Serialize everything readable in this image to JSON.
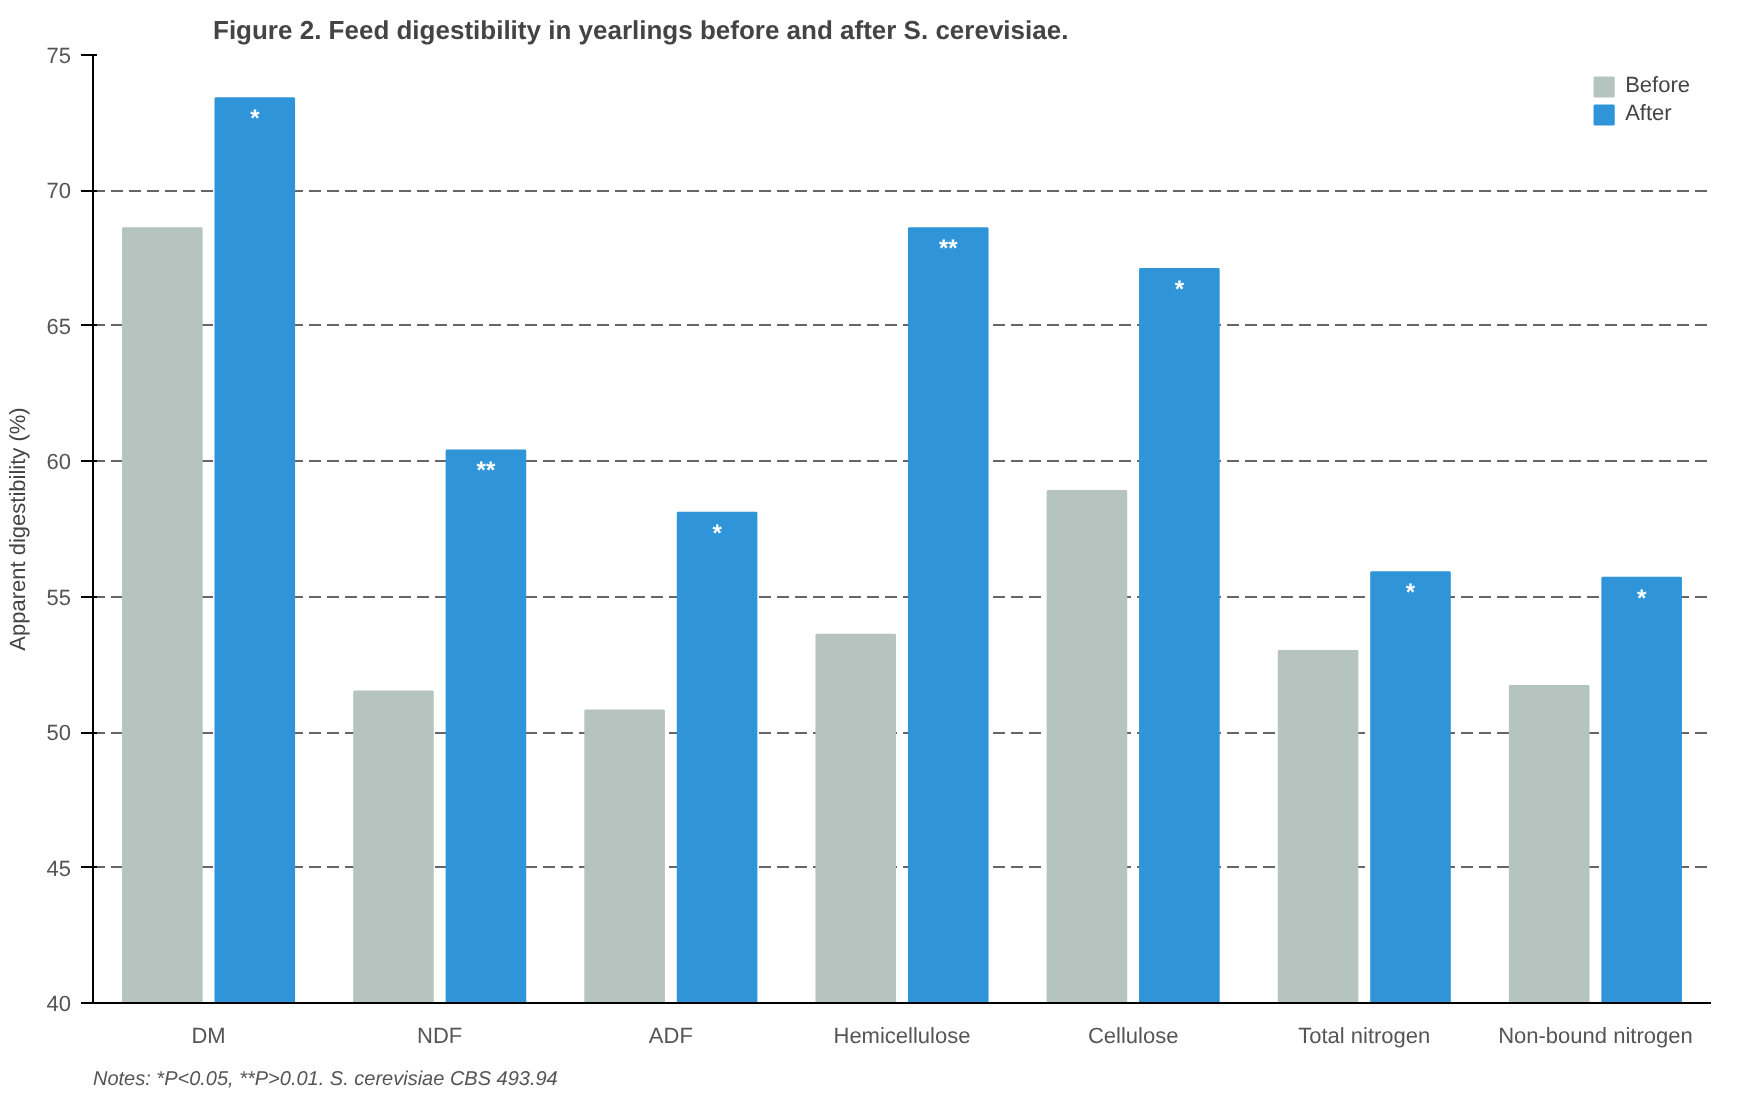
{
  "chart_data": {
    "type": "bar",
    "title": "Figure 2. Feed digestibility in yearlings before and after S. cerevisiae.",
    "ylabel": "Apparent digestibility (%)",
    "categories": [
      "DM",
      "NDF",
      "ADF",
      "Hemicellulose",
      "Cellulose",
      "Total nitrogen",
      "Non-bound nitrogen"
    ],
    "series": [
      {
        "name": "Before",
        "color": "#b5c4be",
        "values": [
          68.6,
          51.5,
          50.8,
          53.6,
          58.9,
          53.0,
          51.7
        ]
      },
      {
        "name": "After",
        "color": "#2f95d8",
        "values": [
          73.4,
          60.4,
          58.1,
          68.6,
          67.1,
          55.9,
          55.7
        ]
      }
    ],
    "ylim": [
      40,
      75
    ],
    "yticks": [
      40,
      45,
      50,
      55,
      60,
      65,
      70,
      75
    ],
    "grid": "y",
    "legend": "top right",
    "annotations": [
      {
        "text": "*",
        "x": "DM",
        "y": 73.4
      },
      {
        "text": "**",
        "x": "NDF",
        "y": 60.4
      },
      {
        "text": "*",
        "x": "ADF",
        "y": 58.1
      },
      {
        "text": "**",
        "x": "Hemicellulose",
        "y": 68.6
      },
      {
        "text": "*",
        "x": "Cellulose",
        "y": 67.1
      },
      {
        "text": "*",
        "x": "Total nitrogen",
        "y": 55.9
      },
      {
        "text": "*",
        "x": "Non-bound nitrogen",
        "y": 55.7
      },
      "Notes: *P<0.05, **P>0.01. S. cerevisiae CBS 493.94"
    ]
  }
}
